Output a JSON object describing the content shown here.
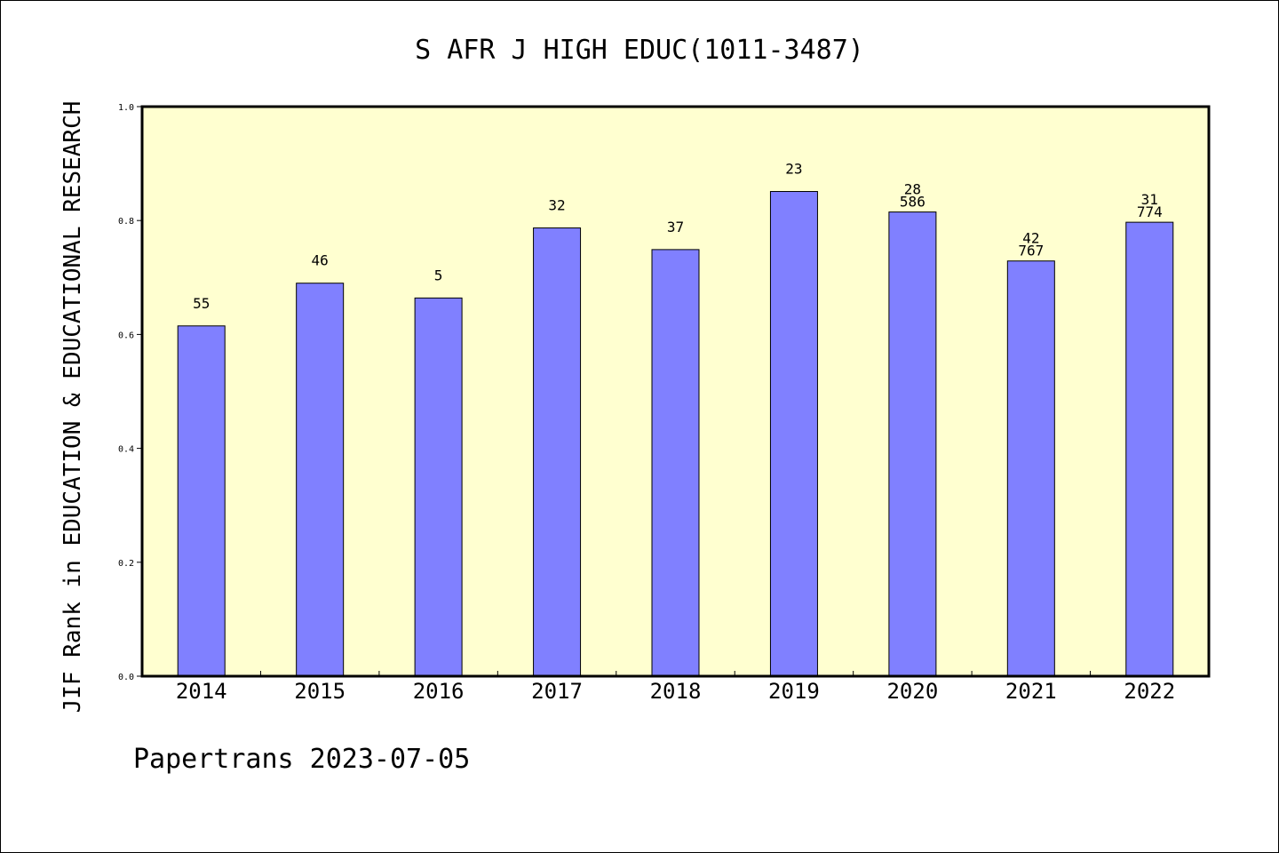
{
  "chart_data": {
    "type": "bar",
    "title": "S AFR J HIGH EDUC(1011-3487)",
    "ylabel": "JIF Rank in EDUCATION & EDUCATIONAL RESEARCH",
    "xlabel": "",
    "categories": [
      "2014",
      "2015",
      "2016",
      "2017",
      "2018",
      "2019",
      "2020",
      "2021",
      "2022"
    ],
    "values": [
      0.615,
      0.69,
      0.664,
      0.787,
      0.749,
      0.851,
      0.815,
      0.729,
      0.797
    ],
    "rank_labels": [
      [
        "55"
      ],
      [
        "46"
      ],
      [
        "5"
      ],
      [
        "32"
      ],
      [
        "37"
      ],
      [
        "23"
      ],
      [
        "28",
        "586"
      ],
      [
        "42",
        "767"
      ],
      [
        "31",
        "774"
      ]
    ],
    "ylim": [
      0,
      1.0
    ],
    "yticks": [
      "0.0",
      "0.2",
      "0.4",
      "0.6",
      "0.8",
      "1.0"
    ],
    "grid": false,
    "bar_color": "#8080ff",
    "plot_background": "#ffffd0"
  },
  "footer": "Papertrans 2023-07-05"
}
